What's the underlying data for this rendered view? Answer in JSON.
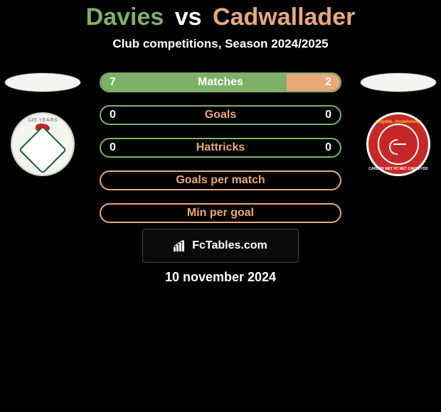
{
  "header": {
    "player1_name": "Davies",
    "vs_text": "vs",
    "player2_name": "Cadwallader",
    "subtitle": "Club competitions, Season 2024/2025"
  },
  "colors": {
    "player1_title": "#7fb069",
    "player2_title": "#e8a87c",
    "player1_border": "#7fb069",
    "player2_border": "#e8a87c",
    "player1_ellipse": "#f5f5f0",
    "player2_ellipse": "#f5f5f0",
    "stat_label_color": "#e8a87c",
    "stat_value_color": "#ffffff",
    "matches_fill_left": "#7fb069",
    "matches_fill_right": "#e8a87c",
    "background": "#000000"
  },
  "stats": [
    {
      "key": "matches",
      "label": "Matches",
      "left_val": "7",
      "right_val": "2",
      "left_pct": 77.8,
      "right_pct": 22.2,
      "border_color": "#7fb069",
      "split_fill": true
    },
    {
      "key": "goals",
      "label": "Goals",
      "left_val": "0",
      "right_val": "0",
      "border_color": "#7fb069",
      "split_fill": false
    },
    {
      "key": "hattricks",
      "label": "Hattricks",
      "left_val": "0",
      "right_val": "0",
      "border_color": "#7fb069",
      "split_fill": false
    },
    {
      "key": "gpm",
      "label": "Goals per match",
      "left_val": "",
      "right_val": "",
      "border_color": "#e8a87c",
      "split_fill": false
    },
    {
      "key": "mpg",
      "label": "Min per goal",
      "left_val": "",
      "right_val": "",
      "border_color": "#e8a87c",
      "split_fill": false
    }
  ],
  "branding": {
    "fctables_text": "FcTables.com"
  },
  "footer": {
    "date_text": "10 november 2024"
  },
  "crests": {
    "left_top_text": "125 YEARS",
    "right_top_text": "Ymgdda, rhodehwarae",
    "right_bottom_text": "CARDIFF MET FC MET CAERDYDD"
  }
}
